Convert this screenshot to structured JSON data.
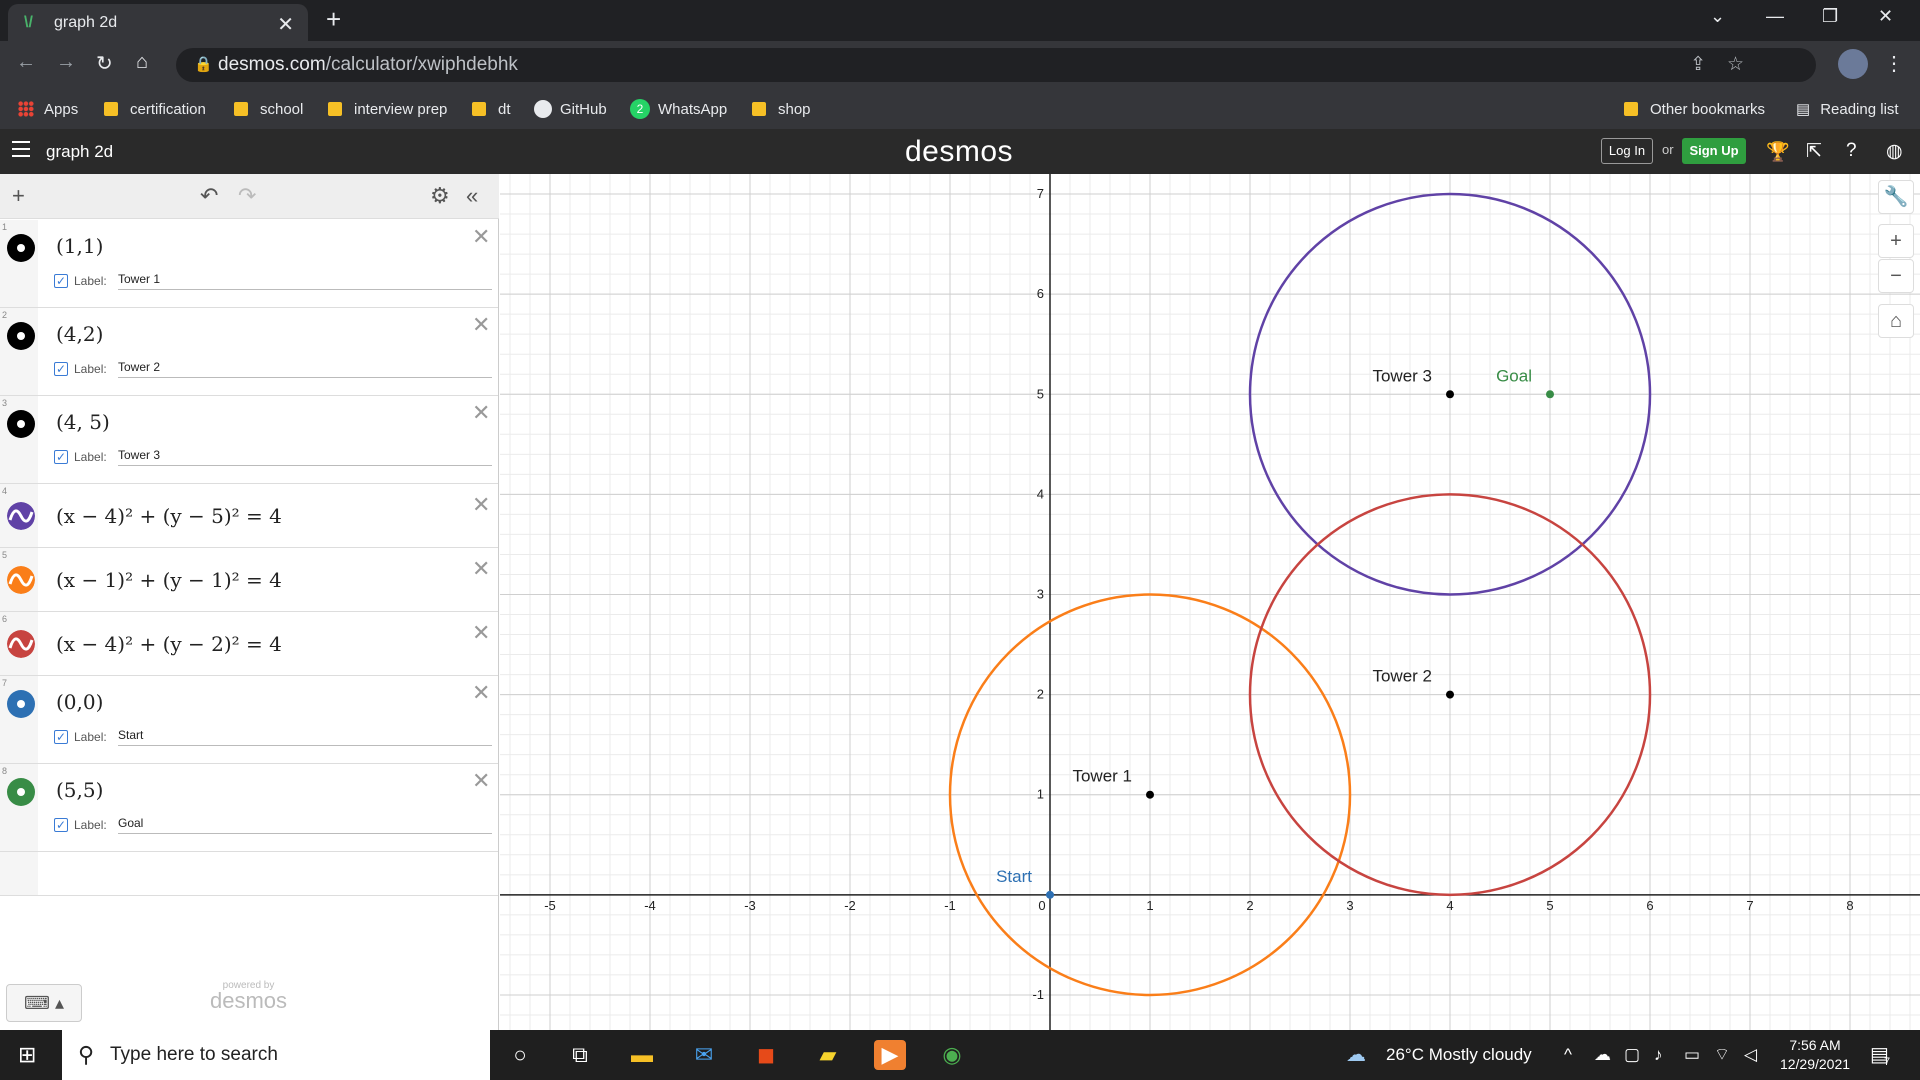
{
  "browser": {
    "tab_title": "graph 2d",
    "url_host": "desmos.com",
    "url_path": "/calculator/xwiphdebhk",
    "bookmarks": [
      "Apps",
      "certification",
      "school",
      "interview prep",
      "dt",
      "GitHub",
      "WhatsApp",
      "shop"
    ],
    "bookmarks_right": [
      "Other bookmarks",
      "Reading list"
    ]
  },
  "header": {
    "menu_title": "graph 2d",
    "logo": "desmos",
    "login": "Log In",
    "or": "or",
    "signup": "Sign Up"
  },
  "expressions": [
    {
      "n": "1",
      "kind": "point",
      "color": "#000000",
      "latex": "(1,1)",
      "label": "Tower 1"
    },
    {
      "n": "2",
      "kind": "point",
      "color": "#000000",
      "latex": "(4,2)",
      "label": "Tower 2"
    },
    {
      "n": "3",
      "kind": "point",
      "color": "#000000",
      "latex": "(4, 5)",
      "label": "Tower 3"
    },
    {
      "n": "4",
      "kind": "circle",
      "color": "#6042a6",
      "latex": "(x − 4)² + (y − 5)² = 4"
    },
    {
      "n": "5",
      "kind": "circle",
      "color": "#fa7e19",
      "latex": "(x − 1)² + (y − 1)² = 4"
    },
    {
      "n": "6",
      "kind": "circle",
      "color": "#c74440",
      "latex": "(x − 4)² + (y − 2)² = 4"
    },
    {
      "n": "7",
      "kind": "point",
      "color": "#2d70b3",
      "latex": "(0,0)",
      "label": "Start"
    },
    {
      "n": "8",
      "kind": "point",
      "color": "#388c46",
      "latex": "(5,5)",
      "label": "Goal"
    }
  ],
  "label_prefix": "Label:",
  "powered": {
    "line1": "powered by",
    "line2": "desmos"
  },
  "graph": {
    "xlim": [
      -5.5,
      8.7
    ],
    "ylim": [
      -1.35,
      7.2
    ],
    "x_ticks": [
      "-5",
      "-4",
      "-3",
      "-2",
      "-1",
      "0",
      "1",
      "2",
      "3",
      "4",
      "5",
      "6",
      "7",
      "8"
    ],
    "y_ticks": [
      "-1",
      "1",
      "2",
      "3",
      "4",
      "5",
      "6",
      "7"
    ],
    "circles": [
      {
        "cx": 4,
        "cy": 5,
        "r": 2,
        "color": "#6042a6"
      },
      {
        "cx": 1,
        "cy": 1,
        "r": 2,
        "color": "#fa7e19"
      },
      {
        "cx": 4,
        "cy": 2,
        "r": 2,
        "color": "#c74440"
      }
    ],
    "points": [
      {
        "x": 1,
        "y": 1,
        "label": "Tower 1",
        "color": "#000000",
        "lpos": "left"
      },
      {
        "x": 4,
        "y": 2,
        "label": "Tower 2",
        "color": "#000000",
        "lpos": "left"
      },
      {
        "x": 4,
        "y": 5,
        "label": "Tower 3",
        "color": "#000000",
        "lpos": "left"
      },
      {
        "x": 0,
        "y": 0,
        "label": "Start",
        "color": "#2d70b3",
        "lpos": "left"
      },
      {
        "x": 5,
        "y": 5,
        "label": "Goal",
        "color": "#388c46",
        "lpos": "left"
      }
    ]
  },
  "taskbar": {
    "search_placeholder": "Type here to search",
    "weather": "26°C  Mostly cloudy",
    "time": "7:56 AM",
    "date": "12/29/2021",
    "notif": "7"
  }
}
